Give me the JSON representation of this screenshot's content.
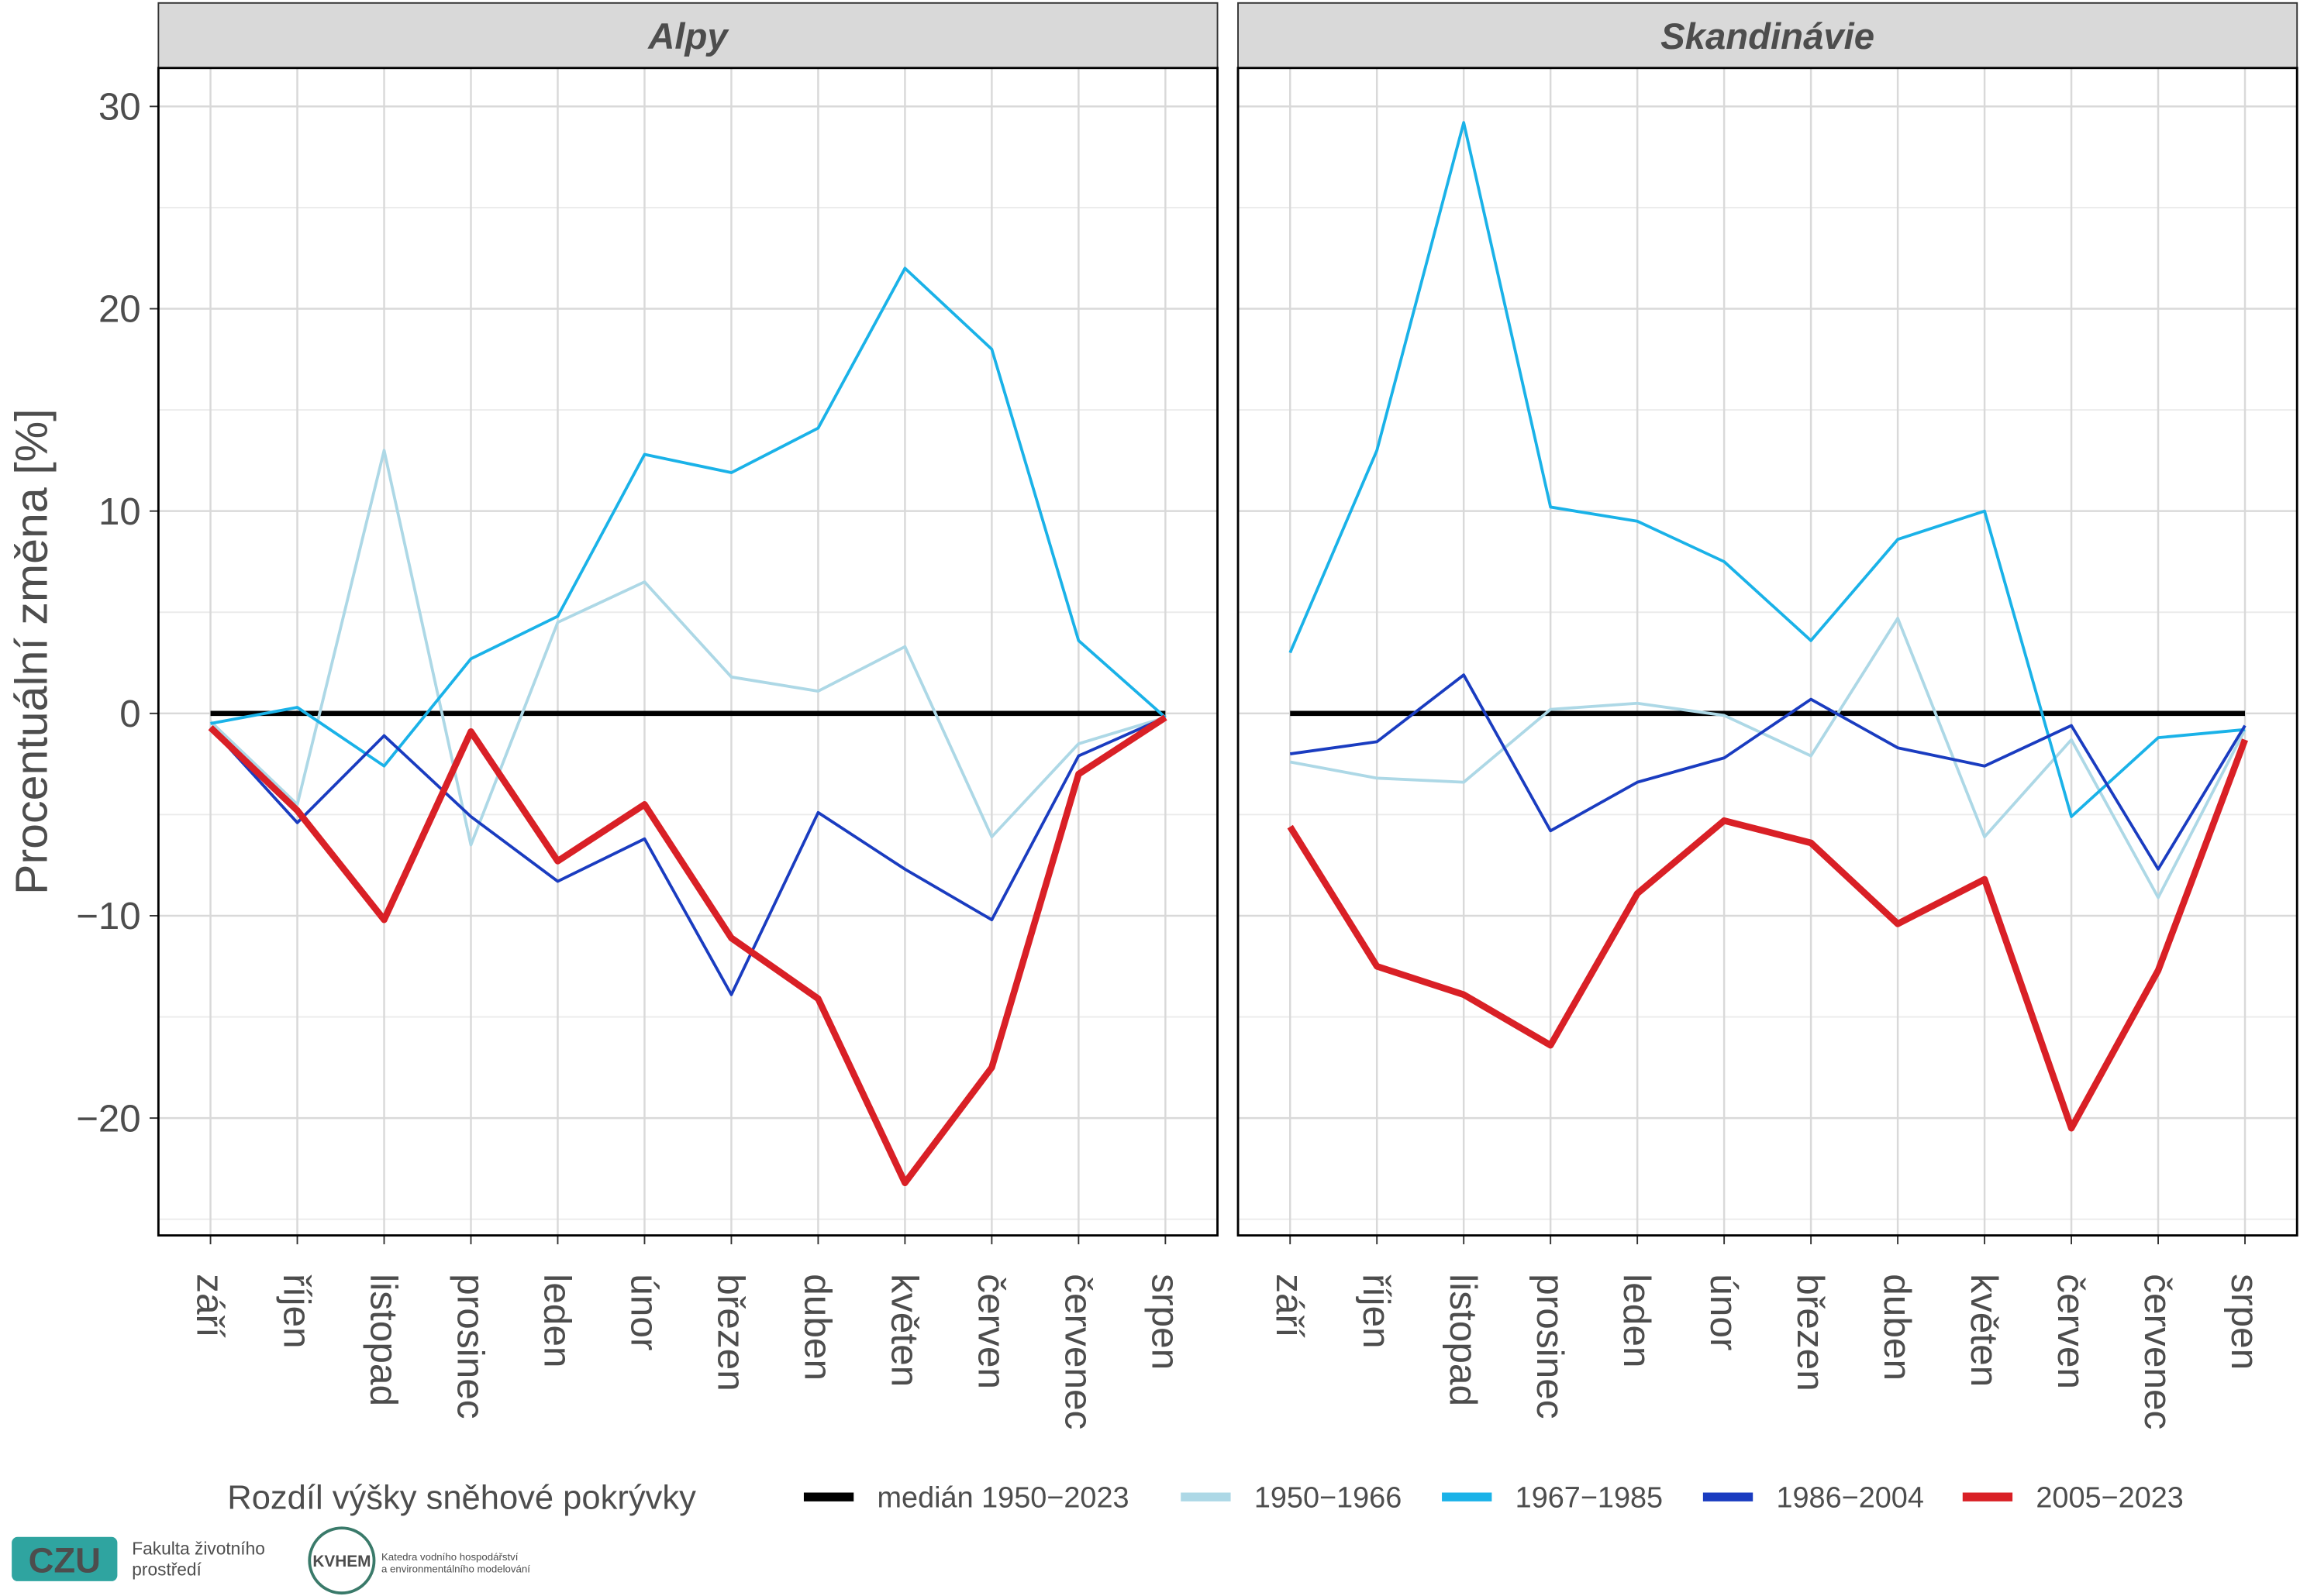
{
  "chart_data": {
    "type": "line",
    "ylabel": "Procentuální změna [%]",
    "legend_title": "Rozdíl výšky sněhové pokrývky",
    "panels": [
      "Alpy",
      "Skandinávie"
    ],
    "categories": [
      "září",
      "říjen",
      "listopad",
      "prosinec",
      "leden",
      "únor",
      "březen",
      "duben",
      "květen",
      "červen",
      "červenec",
      "srpen"
    ],
    "ylim": [
      -25.8,
      31.9
    ],
    "yticks": [
      {
        "value": -20,
        "label": "−20"
      },
      {
        "value": -10,
        "label": "−10"
      },
      0,
      10,
      20,
      30
    ],
    "minor_yticks": [
      -25,
      -15,
      -5,
      5,
      15,
      25
    ],
    "grid": true,
    "legend": "bottom",
    "series": [
      {
        "name": "medián 1950−2023",
        "color": "#000000",
        "values": [
          [
            0,
            0,
            0,
            0,
            0,
            0,
            0,
            0,
            0,
            0,
            0,
            0
          ],
          [
            0,
            0,
            0,
            0,
            0,
            0,
            0,
            0,
            0,
            0,
            0,
            0
          ]
        ]
      },
      {
        "name": "1950−1966",
        "color": "#add8e6",
        "values": [
          [
            -0.4,
            -4.5,
            13,
            -6.5,
            4.5,
            6.5,
            1.8,
            1.1,
            3.3,
            -6.1,
            -1.5,
            -0.2
          ],
          [
            -2.4,
            -3.2,
            -3.4,
            0.2,
            0.5,
            -0.1,
            -2.1,
            4.7,
            -6.1,
            -1.3,
            -9.1,
            -0.8
          ]
        ]
      },
      {
        "name": "1967−1985",
        "color": "#1ab2e8",
        "values": [
          [
            -0.5,
            0.3,
            -2.6,
            2.7,
            4.8,
            12.8,
            11.9,
            14.1,
            22,
            18,
            3.6,
            -0.2
          ],
          [
            3.0,
            13.0,
            29.2,
            10.2,
            9.5,
            7.5,
            3.6,
            8.6,
            10.0,
            -5.1,
            -1.2,
            -0.8
          ]
        ]
      },
      {
        "name": "1986−2004",
        "color": "#1a3cc0",
        "values": [
          [
            -0.7,
            -5.4,
            -1.1,
            -5.1,
            -8.3,
            -6.2,
            -13.9,
            -4.9,
            -7.7,
            -10.2,
            -2.1,
            -0.2
          ],
          [
            -2.0,
            -1.4,
            1.9,
            -5.8,
            -3.4,
            -2.2,
            0.7,
            -1.7,
            -2.6,
            -0.6,
            -7.7,
            -0.6
          ]
        ]
      },
      {
        "name": "2005−2023",
        "color": "#d92026",
        "values": [
          [
            -0.7,
            -4.8,
            -10.2,
            -0.9,
            -7.3,
            -4.5,
            -11.1,
            -14.1,
            -23.2,
            -17.5,
            -3.0,
            -0.2
          ],
          [
            -5.6,
            -12.5,
            -13.9,
            -16.4,
            -8.9,
            -5.3,
            -6.4,
            -10.4,
            -8.2,
            -20.5,
            -12.7,
            -1.3
          ]
        ]
      }
    ]
  },
  "logos": {
    "czu": "CZU",
    "faculty": [
      "Fakulta životního",
      "prostředí"
    ],
    "kvhem": "KVHEM",
    "department": [
      "Katedra vodního hospodářství",
      "a environmentálního modelování"
    ]
  }
}
